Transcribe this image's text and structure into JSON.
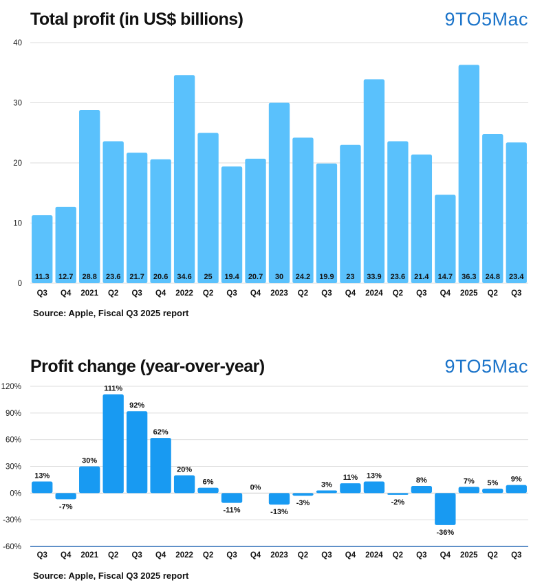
{
  "brand": "9TO5Mac",
  "colors": {
    "bar1": "#5ac1fc",
    "bar2": "#189af2",
    "grid": "#dedede",
    "axis": "#2b6cb5",
    "brand": "#1a73c9"
  },
  "chart_data": [
    {
      "type": "bar",
      "title": "Total profit (in US$ billions)",
      "source": "Source: Apple, Fiscal Q3 2025 report",
      "categories": [
        "Q3",
        "Q4",
        "2021",
        "Q2",
        "Q3",
        "Q4",
        "2022",
        "Q2",
        "Q3",
        "Q4",
        "2023",
        "Q2",
        "Q3",
        "Q4",
        "2024",
        "Q2",
        "Q3",
        "Q4",
        "2025",
        "Q2",
        "Q3"
      ],
      "values": [
        11.3,
        12.7,
        28.8,
        23.6,
        21.7,
        20.6,
        34.6,
        25,
        19.4,
        20.7,
        30,
        24.2,
        19.9,
        23,
        33.9,
        23.6,
        21.4,
        14.7,
        36.3,
        24.8,
        23.4
      ],
      "ylim": [
        0,
        40
      ],
      "yticks": [
        0,
        10,
        20,
        30,
        40
      ],
      "ytick_labels": [
        "0",
        "10",
        "20",
        "30",
        "40"
      ],
      "data_labels": [
        "11.3",
        "12.7",
        "28.8",
        "23.6",
        "21.7",
        "20.6",
        "34.6",
        "25",
        "19.4",
        "20.7",
        "30",
        "24.2",
        "19.9",
        "23",
        "33.9",
        "23.6",
        "21.4",
        "14.7",
        "36.3",
        "24.8",
        "23.4"
      ],
      "label_position": "bottom-inside",
      "grid": true
    },
    {
      "type": "bar",
      "title": "Profit change (year-over-year)",
      "source": "Source: Apple, Fiscal Q3 2025 report",
      "categories": [
        "Q3",
        "Q4",
        "2021",
        "Q2",
        "Q3",
        "Q4",
        "2022",
        "Q2",
        "Q3",
        "Q4",
        "2023",
        "Q2",
        "Q3",
        "Q4",
        "2024",
        "Q2",
        "Q3",
        "Q4",
        "2025",
        "Q2",
        "Q3"
      ],
      "values": [
        13,
        -7,
        30,
        111,
        92,
        62,
        20,
        6,
        -11,
        0,
        -13,
        -3,
        3,
        11,
        13,
        -2,
        8,
        -36,
        7,
        5,
        9
      ],
      "ylim": [
        -60,
        120
      ],
      "yticks": [
        -60,
        -30,
        0,
        30,
        60,
        90,
        120
      ],
      "ytick_labels": [
        "-60%",
        "-30%",
        "0%",
        "30%",
        "60%",
        "90%",
        "120%"
      ],
      "data_labels": [
        "13%",
        "-7%",
        "30%",
        "111%",
        "92%",
        "62%",
        "20%",
        "6%",
        "-11%",
        "0%",
        "-13%",
        "-3%",
        "3%",
        "11%",
        "13%",
        "-2%",
        "8%",
        "-36%",
        "7%",
        "5%",
        "9%"
      ],
      "label_position": "outside",
      "grid": true
    }
  ]
}
